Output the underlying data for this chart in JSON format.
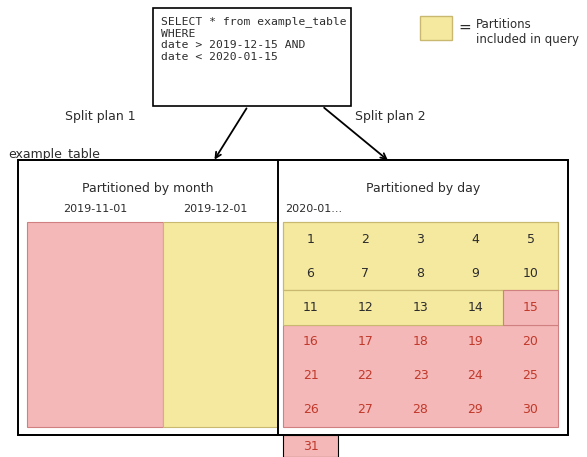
{
  "sql_text": "SELECT * from example_table\nWHERE\ndate > 2019-12-15 AND\ndate < 2020-01-15",
  "legend_text": "Partitions\nincluded in query",
  "split1_label": "Split plan 1",
  "split2_label": "Split plan 2",
  "example_table_label": "example_table",
  "left_header": "Partitioned by month",
  "right_header": "Partitioned by day",
  "date_nov": "2019-11-01",
  "date_dec": "2019-12-01",
  "date_jan": "2020-01...",
  "color_pink": "#f5b8b8",
  "color_pink_edge": "#d08080",
  "color_yellow": "#f5e9a0",
  "color_yellow_edge": "#c8b870",
  "color_red_text": "#c0392b",
  "color_dark": "#2c2c2c",
  "calendar_days": [
    [
      1,
      2,
      3,
      4,
      5
    ],
    [
      6,
      7,
      8,
      9,
      10
    ],
    [
      11,
      12,
      13,
      14,
      15
    ],
    [
      16,
      17,
      18,
      19,
      20
    ],
    [
      21,
      22,
      23,
      24,
      25
    ],
    [
      26,
      27,
      28,
      29,
      30
    ]
  ],
  "day_31": 31,
  "figsize": [
    5.87,
    4.57
  ],
  "dpi": 100
}
